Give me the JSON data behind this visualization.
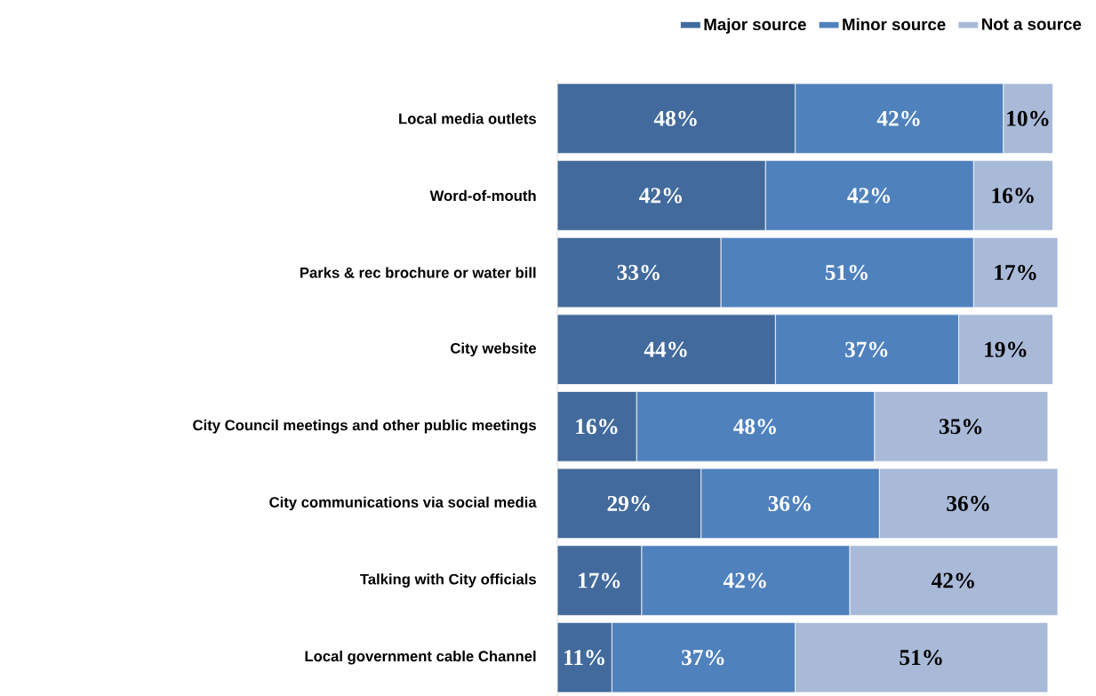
{
  "chart_data": {
    "type": "bar",
    "orientation": "horizontal",
    "stacked": true,
    "legend": "top right",
    "categories": [
      "Local media outlets",
      "Word-of-mouth",
      "Parks & rec brochure or water bill",
      "City website",
      "City Council meetings and other public meetings",
      "City communications via social media",
      "Talking with City officials",
      "Local government cable Channel"
    ],
    "series": [
      {
        "name": "Major source",
        "color": "#426a9c",
        "values": [
          48,
          42,
          33,
          44,
          16,
          29,
          17,
          11
        ],
        "value_labels": [
          "48%",
          "42%",
          "33%",
          "44%",
          "16%",
          "29%",
          "17%",
          "11%"
        ]
      },
      {
        "name": "Minor source",
        "color": "#4f81bd",
        "values": [
          42,
          42,
          51,
          37,
          48,
          36,
          42,
          37
        ],
        "value_labels": [
          "42%",
          "42%",
          "51%",
          "37%",
          "48%",
          "36%",
          "42%",
          "37%"
        ]
      },
      {
        "name": "Not a source",
        "color": "#a9b9d8",
        "values": [
          10,
          16,
          17,
          19,
          35,
          36,
          42,
          51
        ],
        "value_labels": [
          "10%",
          "16%",
          "17%",
          "19%",
          "35%",
          "36%",
          "42%",
          "51%"
        ]
      }
    ]
  }
}
